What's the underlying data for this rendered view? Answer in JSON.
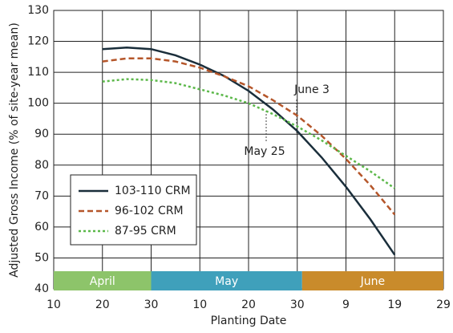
{
  "chart_data": {
    "type": "line",
    "y_label": "Adjusted Gross Income (% of site-year mean)",
    "x_label": "Planting Date",
    "xlim": [
      100,
      180
    ],
    "xticks": [
      {
        "value": 100,
        "label": "10"
      },
      {
        "value": 110,
        "label": "20"
      },
      {
        "value": 120,
        "label": "30"
      },
      {
        "value": 130,
        "label": "10"
      },
      {
        "value": 140,
        "label": "20"
      },
      {
        "value": 150,
        "label": "30"
      },
      {
        "value": 160,
        "label": "9"
      },
      {
        "value": 170,
        "label": "19"
      },
      {
        "value": 180,
        "label": "29"
      }
    ],
    "ylim": [
      40,
      130
    ],
    "yticks": [
      40,
      50,
      60,
      70,
      80,
      90,
      100,
      110,
      120,
      130
    ],
    "grid": true,
    "month_bands": [
      {
        "label": "April",
        "start": 100,
        "end": 120,
        "color": "#8dc46a"
      },
      {
        "label": "May",
        "start": 120,
        "end": 151,
        "color": "#3fa0bb"
      },
      {
        "label": "June",
        "start": 151,
        "end": 180,
        "color": "#c98b2b"
      }
    ],
    "x": [
      110,
      115,
      120,
      125,
      130,
      135,
      140,
      145,
      150,
      155,
      160,
      165,
      170
    ],
    "series": [
      {
        "name": "103-110 CRM",
        "color": "#1a2e3b",
        "dash": "none",
        "values": [
          117.5,
          118,
          117.5,
          115.5,
          112.5,
          108.8,
          104,
          98,
          91,
          82.5,
          73,
          62.5,
          51
        ]
      },
      {
        "name": "96-102 CRM",
        "color": "#b5562a",
        "dash": "7 4",
        "values": [
          113.5,
          114.5,
          114.5,
          113.5,
          111.5,
          108.7,
          105.5,
          101,
          96,
          89.5,
          82,
          73.5,
          64
        ]
      },
      {
        "name": "87-95 CRM",
        "color": "#5cb84a",
        "dash": "3 3",
        "values": [
          107,
          107.8,
          107.5,
          106.5,
          104.5,
          102.5,
          100,
          96.5,
          92.5,
          88,
          83,
          78,
          72.5
        ]
      }
    ],
    "annotations": [
      "June 3",
      "May 25"
    ]
  }
}
